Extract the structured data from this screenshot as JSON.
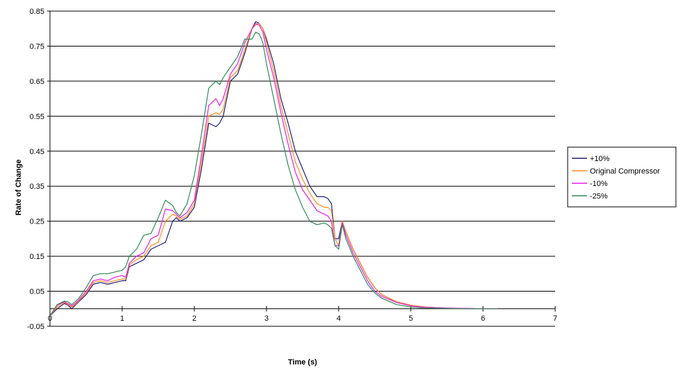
{
  "chart_data": {
    "type": "line",
    "title": "",
    "xlabel": "Time (s)",
    "ylabel": "Rate of Change",
    "xlim": [
      0,
      7
    ],
    "ylim": [
      -0.05,
      0.85
    ],
    "x_ticks": [
      "0",
      "1",
      "2",
      "3",
      "4",
      "5",
      "6",
      "7"
    ],
    "y_ticks": [
      "-0.05",
      "0.05",
      "0.15",
      "0.25",
      "0.35",
      "0.45",
      "0.55",
      "0.65",
      "0.75",
      "0.85"
    ],
    "grid": "horizontal major gridlines",
    "legend_position": "right",
    "series": [
      {
        "name": "+10%",
        "color": "#1f1f7a",
        "x": [
          0,
          0.1,
          0.2,
          0.25,
          0.3,
          0.35,
          0.4,
          0.5,
          0.6,
          0.7,
          0.8,
          0.9,
          1.0,
          1.05,
          1.1,
          1.2,
          1.3,
          1.4,
          1.5,
          1.6,
          1.7,
          1.75,
          1.8,
          1.9,
          2.0,
          2.1,
          2.2,
          2.3,
          2.35,
          2.4,
          2.5,
          2.6,
          2.7,
          2.8,
          2.85,
          2.9,
          2.95,
          3.0,
          3.1,
          3.2,
          3.3,
          3.4,
          3.5,
          3.6,
          3.7,
          3.8,
          3.85,
          3.9,
          3.95,
          4.0,
          4.05,
          4.1,
          4.2,
          4.3,
          4.4,
          4.5,
          4.6,
          4.8,
          5.0,
          5.2,
          5.5,
          5.8,
          6.0,
          6.2
        ],
        "y": [
          -0.02,
          0.0,
          0.015,
          0.01,
          0.0,
          0.01,
          0.02,
          0.04,
          0.07,
          0.075,
          0.07,
          0.075,
          0.08,
          0.08,
          0.12,
          0.13,
          0.14,
          0.17,
          0.18,
          0.19,
          0.25,
          0.26,
          0.25,
          0.26,
          0.29,
          0.4,
          0.53,
          0.52,
          0.53,
          0.55,
          0.65,
          0.67,
          0.73,
          0.8,
          0.82,
          0.815,
          0.8,
          0.77,
          0.7,
          0.6,
          0.53,
          0.45,
          0.4,
          0.35,
          0.32,
          0.32,
          0.315,
          0.3,
          0.2,
          0.2,
          0.25,
          0.22,
          0.17,
          0.13,
          0.09,
          0.06,
          0.04,
          0.02,
          0.01,
          0.005,
          0.002,
          0.001,
          0.0,
          0.0
        ]
      },
      {
        "name": "Original Compressor",
        "color": "#ff8c1a",
        "x": [
          0,
          0.1,
          0.2,
          0.25,
          0.3,
          0.35,
          0.4,
          0.5,
          0.6,
          0.7,
          0.8,
          0.9,
          1.0,
          1.05,
          1.1,
          1.2,
          1.3,
          1.4,
          1.5,
          1.6,
          1.7,
          1.75,
          1.8,
          1.9,
          2.0,
          2.1,
          2.2,
          2.3,
          2.35,
          2.4,
          2.5,
          2.6,
          2.7,
          2.8,
          2.85,
          2.9,
          2.95,
          3.0,
          3.1,
          3.2,
          3.3,
          3.4,
          3.5,
          3.6,
          3.7,
          3.8,
          3.85,
          3.9,
          3.95,
          4.0,
          4.05,
          4.1,
          4.2,
          4.3,
          4.4,
          4.5,
          4.6,
          4.8,
          5.0,
          5.2,
          5.5,
          5.8,
          6.0,
          6.2
        ],
        "y": [
          -0.02,
          0.005,
          0.018,
          0.012,
          0.005,
          0.012,
          0.022,
          0.045,
          0.075,
          0.08,
          0.075,
          0.08,
          0.085,
          0.085,
          0.125,
          0.14,
          0.15,
          0.18,
          0.19,
          0.25,
          0.27,
          0.265,
          0.255,
          0.265,
          0.3,
          0.42,
          0.55,
          0.56,
          0.555,
          0.57,
          0.66,
          0.68,
          0.74,
          0.8,
          0.81,
          0.815,
          0.8,
          0.76,
          0.68,
          0.58,
          0.5,
          0.42,
          0.37,
          0.33,
          0.3,
          0.29,
          0.29,
          0.28,
          0.2,
          0.18,
          0.25,
          0.22,
          0.17,
          0.13,
          0.09,
          0.06,
          0.04,
          0.02,
          0.01,
          0.005,
          0.002,
          0.001,
          0.0,
          0.0
        ]
      },
      {
        "name": "-10%",
        "color": "#e81ce8",
        "x": [
          0,
          0.1,
          0.2,
          0.25,
          0.3,
          0.35,
          0.4,
          0.5,
          0.6,
          0.7,
          0.8,
          0.9,
          1.0,
          1.05,
          1.1,
          1.2,
          1.3,
          1.4,
          1.5,
          1.6,
          1.7,
          1.75,
          1.8,
          1.9,
          2.0,
          2.1,
          2.2,
          2.3,
          2.35,
          2.4,
          2.5,
          2.6,
          2.7,
          2.8,
          2.85,
          2.9,
          2.95,
          3.0,
          3.1,
          3.2,
          3.3,
          3.4,
          3.5,
          3.6,
          3.7,
          3.8,
          3.85,
          3.9,
          3.95,
          4.0,
          4.05,
          4.1,
          4.2,
          4.3,
          4.4,
          4.5,
          4.6,
          4.8,
          5.0,
          5.2,
          5.5,
          5.8,
          6.0,
          6.2
        ],
        "y": [
          -0.02,
          0.01,
          0.02,
          0.015,
          0.008,
          0.015,
          0.025,
          0.05,
          0.08,
          0.085,
          0.08,
          0.09,
          0.095,
          0.09,
          0.13,
          0.15,
          0.16,
          0.2,
          0.21,
          0.285,
          0.28,
          0.27,
          0.26,
          0.275,
          0.31,
          0.44,
          0.58,
          0.6,
          0.58,
          0.6,
          0.67,
          0.7,
          0.76,
          0.8,
          0.815,
          0.81,
          0.79,
          0.74,
          0.66,
          0.56,
          0.47,
          0.39,
          0.34,
          0.31,
          0.28,
          0.27,
          0.265,
          0.25,
          0.18,
          0.18,
          0.245,
          0.21,
          0.16,
          0.12,
          0.08,
          0.05,
          0.035,
          0.018,
          0.008,
          0.004,
          0.002,
          0.001,
          0.0,
          0.0
        ]
      },
      {
        "name": "-25%",
        "color": "#2e8b57",
        "x": [
          0,
          0.1,
          0.2,
          0.25,
          0.3,
          0.35,
          0.4,
          0.5,
          0.6,
          0.7,
          0.8,
          0.9,
          1.0,
          1.05,
          1.1,
          1.2,
          1.3,
          1.4,
          1.5,
          1.6,
          1.7,
          1.75,
          1.8,
          1.9,
          2.0,
          2.1,
          2.2,
          2.3,
          2.35,
          2.4,
          2.5,
          2.6,
          2.7,
          2.8,
          2.85,
          2.9,
          2.95,
          3.0,
          3.1,
          3.2,
          3.3,
          3.4,
          3.5,
          3.6,
          3.7,
          3.8,
          3.85,
          3.9,
          3.95,
          4.0,
          4.05,
          4.1,
          4.2,
          4.3,
          4.4,
          4.5,
          4.6,
          4.8,
          5.0,
          5.2,
          5.5,
          5.8,
          6.0,
          6.2
        ],
        "y": [
          -0.02,
          0.012,
          0.022,
          0.02,
          0.012,
          0.02,
          0.03,
          0.06,
          0.095,
          0.1,
          0.1,
          0.105,
          0.11,
          0.12,
          0.15,
          0.17,
          0.21,
          0.215,
          0.26,
          0.31,
          0.295,
          0.275,
          0.265,
          0.3,
          0.38,
          0.5,
          0.63,
          0.65,
          0.64,
          0.66,
          0.69,
          0.72,
          0.77,
          0.77,
          0.79,
          0.785,
          0.76,
          0.7,
          0.6,
          0.5,
          0.41,
          0.34,
          0.29,
          0.25,
          0.24,
          0.245,
          0.24,
          0.23,
          0.18,
          0.17,
          0.24,
          0.2,
          0.15,
          0.11,
          0.07,
          0.045,
          0.03,
          0.012,
          0.005,
          0.002,
          0.001,
          0.0,
          0.0,
          0.0
        ]
      }
    ]
  }
}
